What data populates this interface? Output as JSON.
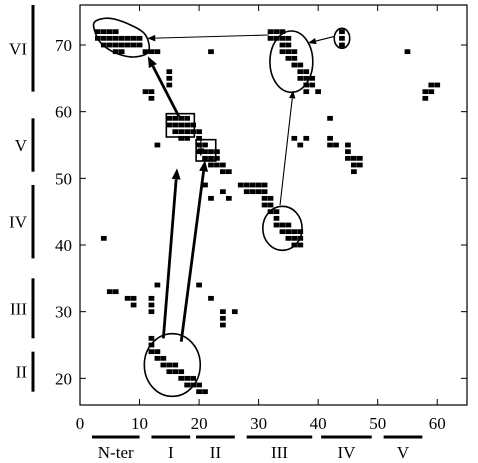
{
  "chart_data": {
    "type": "scatter",
    "xlim": [
      0,
      65
    ],
    "ylim": [
      16,
      76
    ],
    "x_ticks": [
      0,
      10,
      20,
      30,
      40,
      50,
      60
    ],
    "y_ticks": [
      20,
      30,
      40,
      50,
      60,
      70
    ],
    "x_segments": [
      {
        "label": "N-ter",
        "from": 2,
        "to": 10
      },
      {
        "label": "I",
        "from": 12,
        "to": 18.5
      },
      {
        "label": "II",
        "from": 19.5,
        "to": 26
      },
      {
        "label": "III",
        "from": 28,
        "to": 39
      },
      {
        "label": "IV",
        "from": 40.5,
        "to": 49
      },
      {
        "label": "V",
        "from": 51,
        "to": 57.5
      }
    ],
    "y_segments": [
      {
        "label": "VI",
        "from": 63,
        "to": 76
      },
      {
        "label": "V",
        "from": 51,
        "to": 59
      },
      {
        "label": "IV",
        "from": 38,
        "to": 49
      },
      {
        "label": "III",
        "from": 26,
        "to": 35
      },
      {
        "label": "II",
        "from": 18,
        "to": 24
      }
    ],
    "points": [
      [
        3,
        72
      ],
      [
        4,
        72
      ],
      [
        5,
        72
      ],
      [
        6,
        72
      ],
      [
        3,
        71
      ],
      [
        4,
        71
      ],
      [
        5,
        71
      ],
      [
        6,
        71
      ],
      [
        7,
        71
      ],
      [
        8,
        71
      ],
      [
        9,
        71
      ],
      [
        10,
        71
      ],
      [
        4,
        70
      ],
      [
        5,
        70
      ],
      [
        6,
        70
      ],
      [
        7,
        70
      ],
      [
        8,
        70
      ],
      [
        9,
        70
      ],
      [
        10,
        70
      ],
      [
        6,
        69
      ],
      [
        7,
        69
      ],
      [
        11,
        69
      ],
      [
        12,
        69
      ],
      [
        13,
        69
      ],
      [
        22,
        69
      ],
      [
        15,
        66
      ],
      [
        15,
        65
      ],
      [
        15,
        64
      ],
      [
        11,
        63
      ],
      [
        12,
        63
      ],
      [
        12,
        62
      ],
      [
        15,
        59
      ],
      [
        16,
        59
      ],
      [
        17,
        59
      ],
      [
        18,
        59
      ],
      [
        15,
        58
      ],
      [
        16,
        58
      ],
      [
        17,
        58
      ],
      [
        18,
        58
      ],
      [
        19,
        58
      ],
      [
        16,
        57
      ],
      [
        17,
        57
      ],
      [
        18,
        57
      ],
      [
        19,
        57
      ],
      [
        20,
        57
      ],
      [
        17,
        56
      ],
      [
        18,
        56
      ],
      [
        20,
        56
      ],
      [
        13,
        55
      ],
      [
        20,
        55
      ],
      [
        21,
        55
      ],
      [
        20,
        54
      ],
      [
        21,
        54
      ],
      [
        22,
        54
      ],
      [
        23,
        54
      ],
      [
        21,
        53
      ],
      [
        22,
        53
      ],
      [
        23,
        53
      ],
      [
        22,
        52
      ],
      [
        23,
        52
      ],
      [
        24,
        52
      ],
      [
        24,
        51
      ],
      [
        25,
        51
      ],
      [
        21,
        49
      ],
      [
        24,
        48
      ],
      [
        22,
        47
      ],
      [
        25,
        47
      ],
      [
        27,
        49
      ],
      [
        28,
        49
      ],
      [
        29,
        49
      ],
      [
        30,
        49
      ],
      [
        31,
        49
      ],
      [
        28,
        48
      ],
      [
        29,
        48
      ],
      [
        30,
        48
      ],
      [
        31,
        48
      ],
      [
        31,
        47
      ],
      [
        32,
        47
      ],
      [
        31,
        46
      ],
      [
        32,
        46
      ],
      [
        32,
        45
      ],
      [
        33,
        45
      ],
      [
        33,
        44
      ],
      [
        33,
        43
      ],
      [
        34,
        43
      ],
      [
        35,
        43
      ],
      [
        34,
        42
      ],
      [
        35,
        42
      ],
      [
        36,
        42
      ],
      [
        37,
        42
      ],
      [
        35,
        41
      ],
      [
        36,
        41
      ],
      [
        37,
        41
      ],
      [
        36,
        40
      ],
      [
        37,
        40
      ],
      [
        32,
        72
      ],
      [
        33,
        72
      ],
      [
        34,
        72
      ],
      [
        32,
        71
      ],
      [
        33,
        71
      ],
      [
        34,
        71
      ],
      [
        35,
        71
      ],
      [
        34,
        70
      ],
      [
        35,
        70
      ],
      [
        34,
        69
      ],
      [
        35,
        69
      ],
      [
        36,
        69
      ],
      [
        35,
        68
      ],
      [
        36,
        68
      ],
      [
        36,
        67
      ],
      [
        37,
        67
      ],
      [
        37,
        66
      ],
      [
        38,
        66
      ],
      [
        37,
        65
      ],
      [
        38,
        65
      ],
      [
        39,
        65
      ],
      [
        38,
        64
      ],
      [
        39,
        64
      ],
      [
        38,
        63
      ],
      [
        40,
        63
      ],
      [
        44,
        72
      ],
      [
        44,
        71
      ],
      [
        44,
        70
      ],
      [
        55,
        69
      ],
      [
        59,
        64
      ],
      [
        60,
        64
      ],
      [
        58,
        63
      ],
      [
        59,
        63
      ],
      [
        58,
        62
      ],
      [
        36,
        56
      ],
      [
        38,
        56
      ],
      [
        37,
        55
      ],
      [
        42,
        56
      ],
      [
        42,
        55
      ],
      [
        43,
        55
      ],
      [
        45,
        55
      ],
      [
        45,
        54
      ],
      [
        45,
        53
      ],
      [
        46,
        53
      ],
      [
        47,
        53
      ],
      [
        46,
        52
      ],
      [
        47,
        52
      ],
      [
        46,
        51
      ],
      [
        42,
        59
      ],
      [
        4,
        41
      ],
      [
        5,
        33
      ],
      [
        6,
        33
      ],
      [
        8,
        32
      ],
      [
        9,
        32
      ],
      [
        9,
        31
      ],
      [
        12,
        32
      ],
      [
        12,
        31
      ],
      [
        12,
        30
      ],
      [
        13,
        34
      ],
      [
        20,
        34
      ],
      [
        22,
        32
      ],
      [
        24,
        30
      ],
      [
        24,
        29
      ],
      [
        24,
        28
      ],
      [
        26,
        30
      ],
      [
        12,
        26
      ],
      [
        12,
        25
      ],
      [
        12,
        24
      ],
      [
        13,
        24
      ],
      [
        13,
        23
      ],
      [
        14,
        23
      ],
      [
        14,
        22
      ],
      [
        15,
        22
      ],
      [
        16,
        22
      ],
      [
        15,
        21
      ],
      [
        16,
        21
      ],
      [
        17,
        21
      ],
      [
        17,
        20
      ],
      [
        18,
        20
      ],
      [
        19,
        20
      ],
      [
        18,
        19
      ],
      [
        19,
        19
      ],
      [
        20,
        19
      ],
      [
        20,
        18
      ],
      [
        21,
        18
      ]
    ],
    "circles": [
      {
        "cx": 15.5,
        "cy": 22,
        "rx": 4.7,
        "ry": 4.7
      },
      {
        "cx": 34,
        "cy": 42.5,
        "rx": 3.3,
        "ry": 3.3
      },
      {
        "cx": 35.5,
        "cy": 67.5,
        "rx": 3.6,
        "ry": 4.6
      },
      {
        "cx": 44,
        "cy": 71,
        "rx": 1.3,
        "ry": 1.5
      }
    ],
    "rects": [
      {
        "x0": 14.5,
        "x1": 19.2,
        "y0": 56.2,
        "y1": 59.7
      },
      {
        "x0": 19.5,
        "x1": 22.8,
        "y0": 52.6,
        "y1": 55.8
      }
    ],
    "blob": [
      [
        2.5,
        73.5
      ],
      [
        5,
        74
      ],
      [
        8.5,
        73
      ],
      [
        11,
        71.5
      ],
      [
        11.5,
        69
      ],
      [
        9,
        68.2
      ],
      [
        6,
        68.8
      ],
      [
        3.6,
        70.2
      ],
      [
        2.5,
        72
      ]
    ],
    "arrows": [
      {
        "from": [
          14,
          26
        ],
        "to": [
          16.3,
          51.5
        ],
        "bold": true
      },
      {
        "from": [
          17,
          25.5
        ],
        "to": [
          21,
          52.7
        ],
        "bold": true
      },
      {
        "from": [
          16.6,
          59.3
        ],
        "to": [
          11.4,
          68.3
        ],
        "bold": true
      },
      {
        "from": [
          20.3,
          56.2
        ],
        "to": [
          20.3,
          53.3
        ],
        "bold": false
      },
      {
        "from": [
          31.7,
          71.5
        ],
        "to": [
          11.3,
          71
        ],
        "bold": false
      },
      {
        "from": [
          42.8,
          71.3
        ],
        "to": [
          38.3,
          70.3
        ],
        "bold": false
      },
      {
        "from": [
          33.6,
          46
        ],
        "to": [
          35.8,
          63.2
        ],
        "bold": false
      }
    ]
  }
}
